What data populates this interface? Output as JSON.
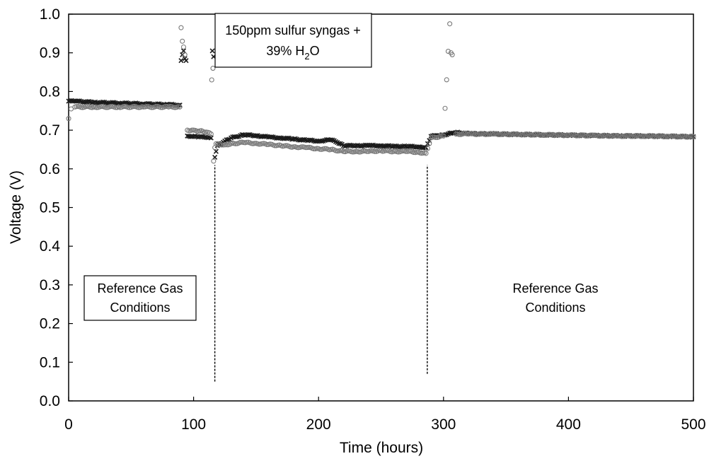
{
  "chart_data": {
    "type": "scatter",
    "title": "",
    "xlabel": "Time (hours)",
    "ylabel": "Voltage (V)",
    "xlim": [
      0,
      500
    ],
    "ylim": [
      0.0,
      1.0
    ],
    "xticks": [
      0,
      100,
      200,
      300,
      400,
      500
    ],
    "xtick_labels": [
      "0",
      "100",
      "200",
      "300",
      "400",
      "500"
    ],
    "yticks": [
      0.0,
      0.1,
      0.2,
      0.3,
      0.4,
      0.5,
      0.6,
      0.7,
      0.8,
      0.9,
      1.0
    ],
    "ytick_labels": [
      "0.0",
      "0.1",
      "0.2",
      "0.3",
      "0.4",
      "0.5",
      "0.6",
      "0.7",
      "0.8",
      "0.9",
      "1.0"
    ],
    "grid": false,
    "legend": "none",
    "series": [
      {
        "marker": "x",
        "color": "#1a1a1a",
        "points": [
          [
            0,
            0.775
          ],
          [
            5,
            0.775
          ],
          [
            20,
            0.772
          ],
          [
            40,
            0.77
          ],
          [
            60,
            0.768
          ],
          [
            80,
            0.766
          ],
          [
            89,
            0.765
          ],
          [
            90,
            0.88
          ],
          [
            91,
            0.895
          ],
          [
            92,
            0.905
          ],
          [
            93,
            0.885
          ],
          [
            94,
            0.88
          ],
          [
            95,
            0.685
          ],
          [
            100,
            0.684
          ],
          [
            105,
            0.683
          ],
          [
            110,
            0.681
          ],
          [
            114,
            0.68
          ],
          [
            115,
            0.905
          ],
          [
            116,
            0.89
          ],
          [
            117,
            0.63
          ],
          [
            118,
            0.645
          ],
          [
            119,
            0.66
          ],
          [
            125,
            0.672
          ],
          [
            130,
            0.68
          ],
          [
            140,
            0.688
          ],
          [
            150,
            0.686
          ],
          [
            160,
            0.682
          ],
          [
            170,
            0.68
          ],
          [
            180,
            0.677
          ],
          [
            190,
            0.674
          ],
          [
            200,
            0.672
          ],
          [
            210,
            0.675
          ],
          [
            215,
            0.668
          ],
          [
            220,
            0.66
          ],
          [
            230,
            0.66
          ],
          [
            240,
            0.66
          ],
          [
            250,
            0.66
          ],
          [
            260,
            0.658
          ],
          [
            270,
            0.658
          ],
          [
            280,
            0.657
          ],
          [
            286,
            0.655
          ],
          [
            290,
            0.684
          ],
          [
            300,
            0.688
          ],
          [
            310,
            0.694
          ],
          [
            320,
            0.691
          ],
          [
            340,
            0.69
          ],
          [
            360,
            0.689
          ],
          [
            380,
            0.688
          ],
          [
            400,
            0.687
          ],
          [
            420,
            0.686
          ],
          [
            440,
            0.685
          ],
          [
            460,
            0.685
          ],
          [
            480,
            0.684
          ],
          [
            500,
            0.683
          ]
        ]
      },
      {
        "marker": "o",
        "color": "#7a7a7a",
        "points": [
          [
            0,
            0.73
          ],
          [
            2,
            0.755
          ],
          [
            5,
            0.76
          ],
          [
            20,
            0.76
          ],
          [
            40,
            0.76
          ],
          [
            60,
            0.76
          ],
          [
            80,
            0.76
          ],
          [
            89,
            0.76
          ],
          [
            90,
            0.965
          ],
          [
            91,
            0.93
          ],
          [
            92,
            0.915
          ],
          [
            93,
            0.895
          ],
          [
            95,
            0.7
          ],
          [
            100,
            0.7
          ],
          [
            105,
            0.698
          ],
          [
            110,
            0.695
          ],
          [
            114,
            0.69
          ],
          [
            114.5,
            0.83
          ],
          [
            115.5,
            0.86
          ],
          [
            116,
            0.62
          ],
          [
            117,
            0.655
          ],
          [
            118,
            0.665
          ],
          [
            125,
            0.662
          ],
          [
            130,
            0.665
          ],
          [
            140,
            0.668
          ],
          [
            150,
            0.666
          ],
          [
            160,
            0.663
          ],
          [
            170,
            0.66
          ],
          [
            180,
            0.657
          ],
          [
            190,
            0.655
          ],
          [
            200,
            0.652
          ],
          [
            210,
            0.65
          ],
          [
            220,
            0.645
          ],
          [
            230,
            0.645
          ],
          [
            240,
            0.645
          ],
          [
            250,
            0.647
          ],
          [
            260,
            0.645
          ],
          [
            270,
            0.645
          ],
          [
            280,
            0.643
          ],
          [
            286,
            0.64
          ],
          [
            290,
            0.68
          ],
          [
            300,
            0.685
          ],
          [
            305,
            0.975
          ],
          [
            306,
            0.9
          ],
          [
            307,
            0.895
          ],
          [
            310,
            0.69
          ],
          [
            320,
            0.69
          ],
          [
            340,
            0.69
          ],
          [
            360,
            0.689
          ],
          [
            380,
            0.688
          ],
          [
            400,
            0.687
          ],
          [
            420,
            0.686
          ],
          [
            440,
            0.685
          ],
          [
            460,
            0.685
          ],
          [
            480,
            0.684
          ],
          [
            500,
            0.683
          ]
        ]
      }
    ],
    "vertical_lines": [
      {
        "x": 117,
        "y_from": 0.05,
        "y_to": 0.61
      },
      {
        "x": 287,
        "y_from": 0.07,
        "y_to": 0.61
      }
    ],
    "annotations": [
      {
        "lines": [
          "150ppm sulfur syngas +",
          "39% H2O"
        ]
      },
      {
        "lines": [
          "Reference Gas",
          "Conditions"
        ]
      },
      {
        "lines": [
          "Reference Gas",
          "Conditions"
        ]
      }
    ]
  }
}
